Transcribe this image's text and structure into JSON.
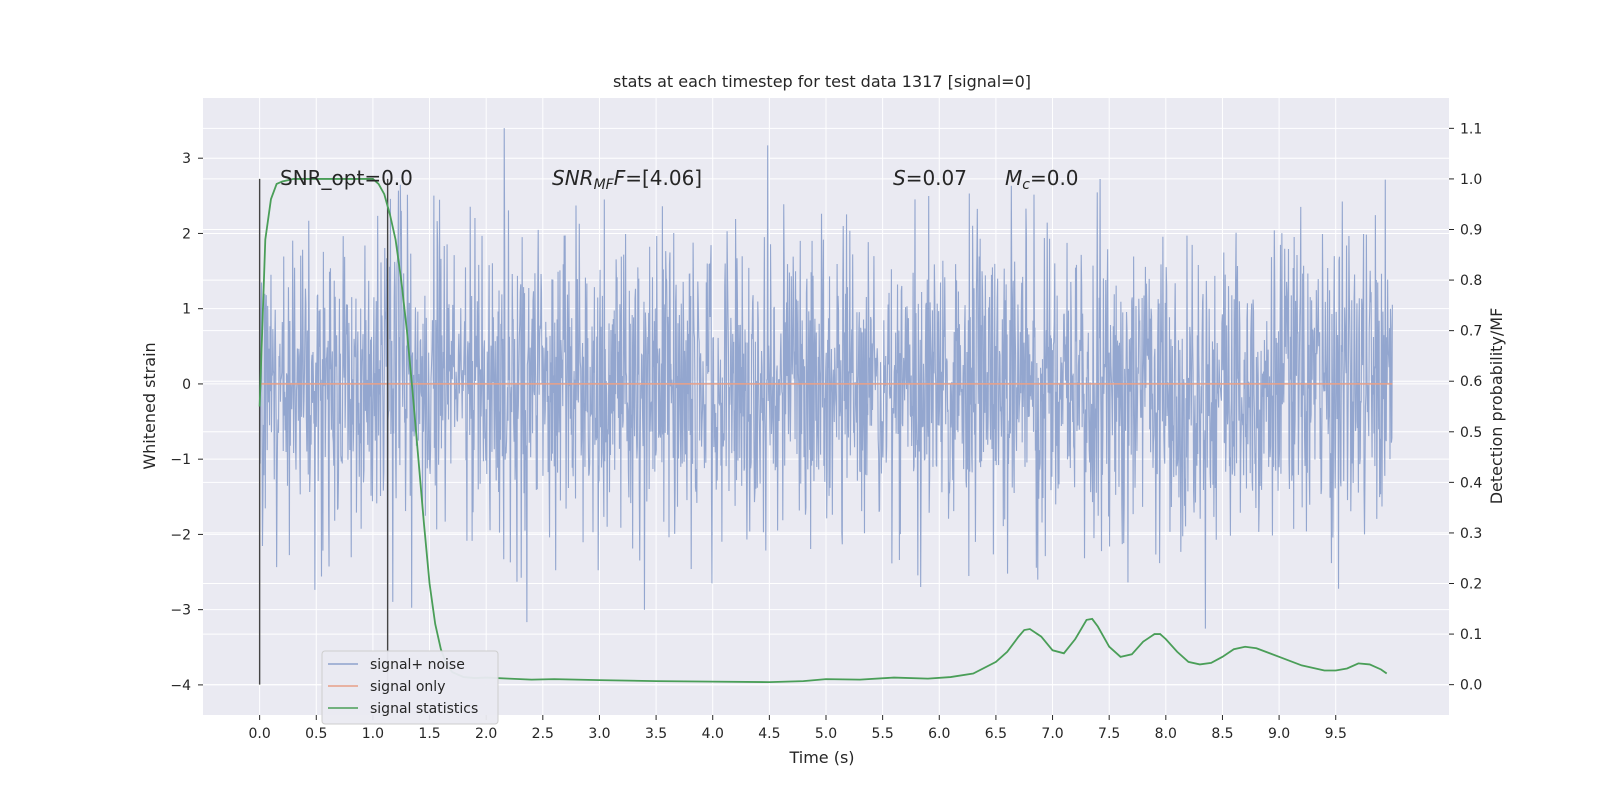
{
  "chart_data": {
    "type": "line",
    "title": "stats at each timestep for test data 1317 [signal=0]",
    "xlabel": "Time (s)",
    "ylabel": "Whitened strain",
    "y2label": "Detection probability/MF",
    "xlim": [
      -0.5,
      10.5
    ],
    "ylim": [
      -4.4,
      3.8
    ],
    "y2lim": [
      -0.06,
      1.16
    ],
    "x_ticks": [
      "0.0",
      "0.5",
      "1.0",
      "1.5",
      "2.0",
      "2.5",
      "3.0",
      "3.5",
      "4.0",
      "4.5",
      "5.0",
      "5.5",
      "6.0",
      "6.5",
      "7.0",
      "7.5",
      "8.0",
      "8.5",
      "9.0",
      "9.5"
    ],
    "y_ticks": [
      "3",
      "2",
      "1",
      "0",
      "−1",
      "−2",
      "−3",
      "−4"
    ],
    "y2_ticks": [
      "1.1",
      "1.0",
      "0.9",
      "0.8",
      "0.7",
      "0.6",
      "0.5",
      "0.4",
      "0.3",
      "0.2",
      "0.1",
      "0.0"
    ],
    "grid": true,
    "legend_position": "lower-left",
    "annotations": {
      "snr_opt": "SNR_opt=0.0",
      "snr_mf_main": "SNR",
      "snr_mf_sub": "MF",
      "snr_mf_value": "=[4.06]",
      "s_main": "S",
      "s_value": "=0.07",
      "mc_main": "M",
      "mc_sub": "c",
      "mc_value": "=0.0"
    },
    "vertical_lines_x": [
      0.0,
      1.13
    ],
    "series": [
      {
        "name": "signal+ noise",
        "color": "#8ea2cc",
        "x_range": [
          0.0,
          10.0
        ],
        "envelope_level": 1.0,
        "peak_level": 3.4,
        "trough_level": -4.05
      },
      {
        "name": "signal only",
        "color": "#e8a088",
        "x": [
          0.0,
          10.0
        ],
        "y": [
          0.0,
          0.0
        ]
      },
      {
        "name": "signal statistics",
        "color": "#4a9e58",
        "axis": "right",
        "x": [
          0.0,
          0.05,
          0.1,
          0.15,
          0.2,
          0.3,
          0.4,
          0.5,
          0.6,
          0.7,
          0.8,
          0.9,
          1.0,
          1.05,
          1.1,
          1.15,
          1.2,
          1.25,
          1.3,
          1.35,
          1.4,
          1.45,
          1.5,
          1.55,
          1.6,
          1.65,
          1.7,
          1.8,
          1.9,
          2.0,
          2.2,
          2.4,
          2.6,
          2.8,
          3.0,
          3.5,
          4.0,
          4.5,
          4.8,
          5.0,
          5.3,
          5.6,
          5.9,
          6.1,
          6.3,
          6.5,
          6.6,
          6.7,
          6.75,
          6.8,
          6.9,
          7.0,
          7.1,
          7.2,
          7.3,
          7.35,
          7.4,
          7.5,
          7.6,
          7.7,
          7.8,
          7.9,
          7.95,
          8.0,
          8.1,
          8.2,
          8.3,
          8.4,
          8.5,
          8.6,
          8.7,
          8.8,
          9.0,
          9.2,
          9.4,
          9.5,
          9.6,
          9.7,
          9.8,
          9.9,
          9.95
        ],
        "y": [
          0.55,
          0.88,
          0.96,
          0.99,
          0.995,
          1.0,
          1.0,
          1.0,
          1.0,
          1.0,
          1.0,
          1.0,
          1.0,
          0.99,
          0.97,
          0.93,
          0.88,
          0.8,
          0.7,
          0.58,
          0.45,
          0.32,
          0.2,
          0.12,
          0.07,
          0.04,
          0.025,
          0.015,
          0.013,
          0.014,
          0.012,
          0.01,
          0.011,
          0.01,
          0.009,
          0.007,
          0.006,
          0.005,
          0.007,
          0.011,
          0.01,
          0.014,
          0.012,
          0.015,
          0.022,
          0.045,
          0.065,
          0.095,
          0.108,
          0.11,
          0.095,
          0.068,
          0.062,
          0.09,
          0.128,
          0.13,
          0.115,
          0.075,
          0.055,
          0.06,
          0.085,
          0.1,
          0.1,
          0.09,
          0.065,
          0.045,
          0.04,
          0.043,
          0.055,
          0.07,
          0.075,
          0.072,
          0.055,
          0.038,
          0.028,
          0.028,
          0.032,
          0.042,
          0.04,
          0.03,
          0.022
        ]
      }
    ]
  }
}
